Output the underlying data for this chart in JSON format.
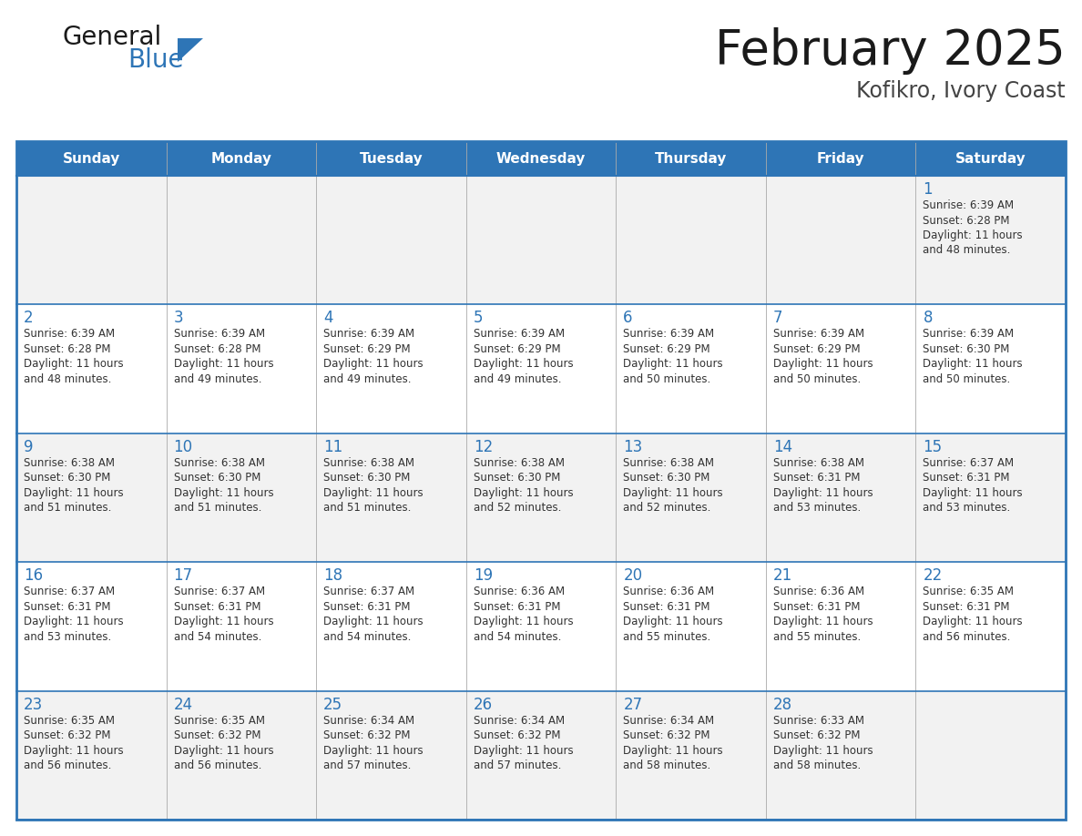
{
  "title": "February 2025",
  "subtitle": "Kofikro, Ivory Coast",
  "header_bg": "#2E75B6",
  "header_text_color": "#FFFFFF",
  "row_bg_even": "#F2F2F2",
  "row_bg_odd": "#FFFFFF",
  "border_color": "#2E75B6",
  "title_color": "#1a1a1a",
  "subtitle_color": "#444444",
  "day_number_color": "#2E75B6",
  "cell_text_color": "#333333",
  "logo_text_color": "#1a1a1a",
  "logo_blue_color": "#2E75B6",
  "days_of_week": [
    "Sunday",
    "Monday",
    "Tuesday",
    "Wednesday",
    "Thursday",
    "Friday",
    "Saturday"
  ],
  "weeks": [
    [
      null,
      null,
      null,
      null,
      null,
      null,
      1
    ],
    [
      2,
      3,
      4,
      5,
      6,
      7,
      8
    ],
    [
      9,
      10,
      11,
      12,
      13,
      14,
      15
    ],
    [
      16,
      17,
      18,
      19,
      20,
      21,
      22
    ],
    [
      23,
      24,
      25,
      26,
      27,
      28,
      null
    ]
  ],
  "cell_data": {
    "1": {
      "sunrise": "6:39 AM",
      "sunset": "6:28 PM",
      "daylight_hours": 11,
      "daylight_minutes": 48
    },
    "2": {
      "sunrise": "6:39 AM",
      "sunset": "6:28 PM",
      "daylight_hours": 11,
      "daylight_minutes": 48
    },
    "3": {
      "sunrise": "6:39 AM",
      "sunset": "6:28 PM",
      "daylight_hours": 11,
      "daylight_minutes": 49
    },
    "4": {
      "sunrise": "6:39 AM",
      "sunset": "6:29 PM",
      "daylight_hours": 11,
      "daylight_minutes": 49
    },
    "5": {
      "sunrise": "6:39 AM",
      "sunset": "6:29 PM",
      "daylight_hours": 11,
      "daylight_minutes": 49
    },
    "6": {
      "sunrise": "6:39 AM",
      "sunset": "6:29 PM",
      "daylight_hours": 11,
      "daylight_minutes": 50
    },
    "7": {
      "sunrise": "6:39 AM",
      "sunset": "6:29 PM",
      "daylight_hours": 11,
      "daylight_minutes": 50
    },
    "8": {
      "sunrise": "6:39 AM",
      "sunset": "6:30 PM",
      "daylight_hours": 11,
      "daylight_minutes": 50
    },
    "9": {
      "sunrise": "6:38 AM",
      "sunset": "6:30 PM",
      "daylight_hours": 11,
      "daylight_minutes": 51
    },
    "10": {
      "sunrise": "6:38 AM",
      "sunset": "6:30 PM",
      "daylight_hours": 11,
      "daylight_minutes": 51
    },
    "11": {
      "sunrise": "6:38 AM",
      "sunset": "6:30 PM",
      "daylight_hours": 11,
      "daylight_minutes": 51
    },
    "12": {
      "sunrise": "6:38 AM",
      "sunset": "6:30 PM",
      "daylight_hours": 11,
      "daylight_minutes": 52
    },
    "13": {
      "sunrise": "6:38 AM",
      "sunset": "6:30 PM",
      "daylight_hours": 11,
      "daylight_minutes": 52
    },
    "14": {
      "sunrise": "6:38 AM",
      "sunset": "6:31 PM",
      "daylight_hours": 11,
      "daylight_minutes": 53
    },
    "15": {
      "sunrise": "6:37 AM",
      "sunset": "6:31 PM",
      "daylight_hours": 11,
      "daylight_minutes": 53
    },
    "16": {
      "sunrise": "6:37 AM",
      "sunset": "6:31 PM",
      "daylight_hours": 11,
      "daylight_minutes": 53
    },
    "17": {
      "sunrise": "6:37 AM",
      "sunset": "6:31 PM",
      "daylight_hours": 11,
      "daylight_minutes": 54
    },
    "18": {
      "sunrise": "6:37 AM",
      "sunset": "6:31 PM",
      "daylight_hours": 11,
      "daylight_minutes": 54
    },
    "19": {
      "sunrise": "6:36 AM",
      "sunset": "6:31 PM",
      "daylight_hours": 11,
      "daylight_minutes": 54
    },
    "20": {
      "sunrise": "6:36 AM",
      "sunset": "6:31 PM",
      "daylight_hours": 11,
      "daylight_minutes": 55
    },
    "21": {
      "sunrise": "6:36 AM",
      "sunset": "6:31 PM",
      "daylight_hours": 11,
      "daylight_minutes": 55
    },
    "22": {
      "sunrise": "6:35 AM",
      "sunset": "6:31 PM",
      "daylight_hours": 11,
      "daylight_minutes": 56
    },
    "23": {
      "sunrise": "6:35 AM",
      "sunset": "6:32 PM",
      "daylight_hours": 11,
      "daylight_minutes": 56
    },
    "24": {
      "sunrise": "6:35 AM",
      "sunset": "6:32 PM",
      "daylight_hours": 11,
      "daylight_minutes": 56
    },
    "25": {
      "sunrise": "6:34 AM",
      "sunset": "6:32 PM",
      "daylight_hours": 11,
      "daylight_minutes": 57
    },
    "26": {
      "sunrise": "6:34 AM",
      "sunset": "6:32 PM",
      "daylight_hours": 11,
      "daylight_minutes": 57
    },
    "27": {
      "sunrise": "6:34 AM",
      "sunset": "6:32 PM",
      "daylight_hours": 11,
      "daylight_minutes": 58
    },
    "28": {
      "sunrise": "6:33 AM",
      "sunset": "6:32 PM",
      "daylight_hours": 11,
      "daylight_minutes": 58
    }
  }
}
